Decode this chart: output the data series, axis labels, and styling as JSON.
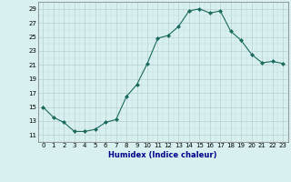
{
  "x": [
    0,
    1,
    2,
    3,
    4,
    5,
    6,
    7,
    8,
    9,
    10,
    11,
    12,
    13,
    14,
    15,
    16,
    17,
    18,
    19,
    20,
    21,
    22,
    23
  ],
  "y": [
    15,
    13.5,
    12.8,
    11.5,
    11.5,
    11.8,
    12.8,
    13.2,
    16.5,
    18.2,
    21.2,
    24.8,
    25.2,
    26.5,
    28.7,
    29.0,
    28.4,
    28.7,
    25.8,
    24.5,
    22.5,
    21.3,
    21.5,
    21.2
  ],
  "xlabel": "Humidex (Indice chaleur)",
  "ylim": [
    10,
    30
  ],
  "yticks": [
    11,
    13,
    15,
    17,
    19,
    21,
    23,
    25,
    27,
    29
  ],
  "xticks": [
    0,
    1,
    2,
    3,
    4,
    5,
    6,
    7,
    8,
    9,
    10,
    11,
    12,
    13,
    14,
    15,
    16,
    17,
    18,
    19,
    20,
    21,
    22,
    23
  ],
  "line_color": "#1a6b5e",
  "marker_color": "#1a6b5e",
  "bg_color": "#d8f0f0",
  "grid_color": "#b8d0d0",
  "grid_minor_color": "#c8dcdc",
  "xlabel_color": "#00008b",
  "xlabel_fontsize": 6.0,
  "tick_fontsize": 5.0
}
